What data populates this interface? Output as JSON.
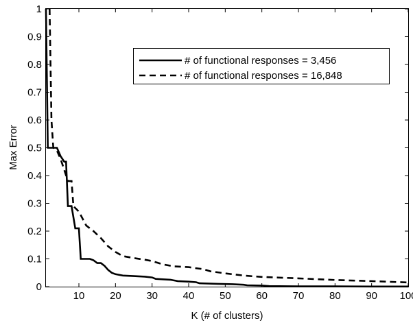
{
  "chart_data": {
    "type": "line",
    "xlabel": "K (# of clusters)",
    "ylabel": "Max Error",
    "xlim": [
      1,
      100
    ],
    "ylim": [
      0,
      1
    ],
    "x_ticks": [
      10,
      20,
      30,
      40,
      50,
      60,
      70,
      80,
      90,
      100
    ],
    "y_ticks": [
      0,
      0.1,
      0.2,
      0.3,
      0.4,
      0.5,
      0.6,
      0.7,
      0.8,
      0.9,
      1
    ],
    "x_tick_labels": [
      "10",
      "20",
      "30",
      "40",
      "50",
      "60",
      "70",
      "80",
      "90",
      "100"
    ],
    "y_tick_labels": [
      "0",
      "0.1",
      "0.2",
      "0.3",
      "0.4",
      "0.5",
      "0.6",
      "0.7",
      "0.8",
      "0.9",
      "1"
    ],
    "grid": false,
    "legend_position": "top-right",
    "series": [
      {
        "name": "# of functional responses = 3,456",
        "style": "solid",
        "color": "#000000",
        "points": [
          [
            1,
            1.0
          ],
          [
            1.5,
            0.5
          ],
          [
            2,
            0.5
          ],
          [
            3,
            0.5
          ],
          [
            4,
            0.5
          ],
          [
            5,
            0.47
          ],
          [
            6,
            0.45
          ],
          [
            6.5,
            0.45
          ],
          [
            7,
            0.29
          ],
          [
            8,
            0.29
          ],
          [
            9,
            0.21
          ],
          [
            10,
            0.21
          ],
          [
            10.5,
            0.1
          ],
          [
            13,
            0.1
          ],
          [
            14,
            0.095
          ],
          [
            15,
            0.085
          ],
          [
            16,
            0.085
          ],
          [
            17,
            0.075
          ],
          [
            18,
            0.06
          ],
          [
            19,
            0.05
          ],
          [
            20,
            0.045
          ],
          [
            22,
            0.04
          ],
          [
            25,
            0.038
          ],
          [
            28,
            0.036
          ],
          [
            30,
            0.033
          ],
          [
            31,
            0.028
          ],
          [
            35,
            0.025
          ],
          [
            37,
            0.02
          ],
          [
            40,
            0.018
          ],
          [
            42,
            0.016
          ],
          [
            43,
            0.012
          ],
          [
            48,
            0.01
          ],
          [
            52,
            0.009
          ],
          [
            55,
            0.007
          ],
          [
            56,
            0.005
          ],
          [
            60,
            0.004
          ],
          [
            62,
            0.002
          ],
          [
            70,
            0.001
          ],
          [
            80,
            0.001
          ],
          [
            90,
            0.0005
          ],
          [
            100,
            0.0005
          ]
        ]
      },
      {
        "name": "# of functional responses = 16,848",
        "style": "dashed",
        "color": "#000000",
        "points": [
          [
            2,
            1.0
          ],
          [
            2.5,
            0.6
          ],
          [
            3,
            0.5
          ],
          [
            4,
            0.49
          ],
          [
            5,
            0.46
          ],
          [
            6,
            0.42
          ],
          [
            7,
            0.38
          ],
          [
            8,
            0.38
          ],
          [
            8.5,
            0.29
          ],
          [
            10,
            0.27
          ],
          [
            12,
            0.22
          ],
          [
            14,
            0.2
          ],
          [
            16,
            0.175
          ],
          [
            18,
            0.145
          ],
          [
            20,
            0.125
          ],
          [
            22,
            0.11
          ],
          [
            25,
            0.103
          ],
          [
            28,
            0.097
          ],
          [
            30,
            0.092
          ],
          [
            33,
            0.08
          ],
          [
            36,
            0.073
          ],
          [
            40,
            0.07
          ],
          [
            44,
            0.063
          ],
          [
            46,
            0.055
          ],
          [
            50,
            0.048
          ],
          [
            55,
            0.04
          ],
          [
            60,
            0.035
          ],
          [
            70,
            0.03
          ],
          [
            80,
            0.024
          ],
          [
            90,
            0.02
          ],
          [
            100,
            0.015
          ]
        ]
      }
    ]
  }
}
